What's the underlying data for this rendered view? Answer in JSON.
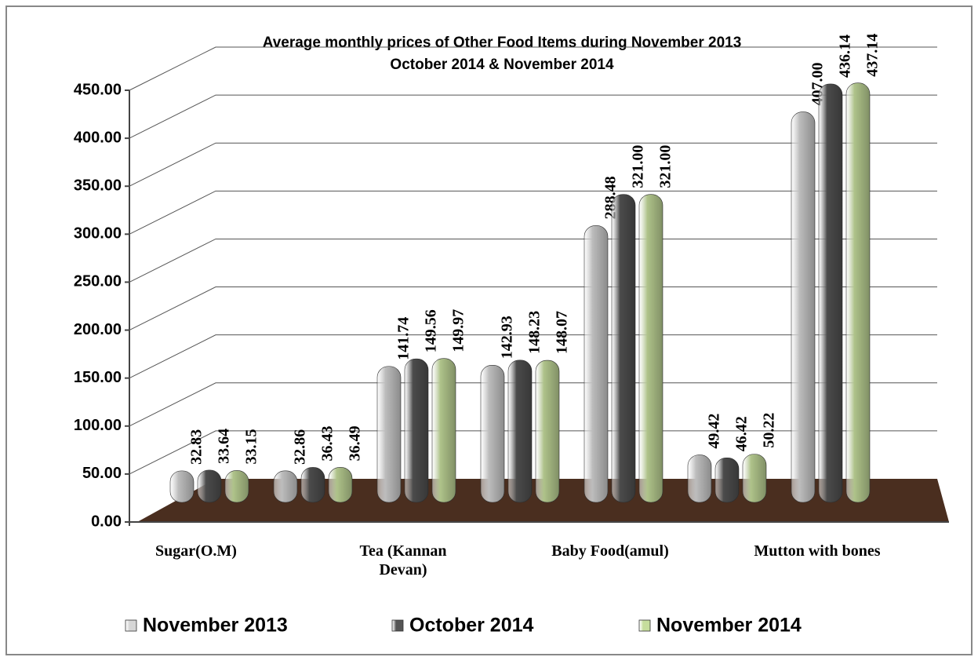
{
  "chart_data": {
    "type": "bar3d",
    "title": [
      "Average monthly prices of Other Food Items during  November  2013",
      "October 2014 & November 2014"
    ],
    "categories": [
      "Sugar(O.M)",
      null,
      "Tea (Kannan Devan)",
      null,
      "Baby Food(amul)",
      null,
      "Mutton with  bones"
    ],
    "series": [
      {
        "name": "November 2013",
        "color": "#d6d6d6",
        "values": [
          32.83,
          32.86,
          141.74,
          142.93,
          288.48,
          49.42,
          407.0
        ],
        "value_labels": [
          "32.83",
          "32.86",
          "141.74",
          "142.93",
          "288.48",
          "49.42",
          "407.00"
        ]
      },
      {
        "name": "October 2014",
        "color": "#555555",
        "values": [
          33.64,
          36.43,
          149.56,
          148.23,
          321.0,
          46.42,
          436.14
        ],
        "value_labels": [
          "33.64",
          "36.43",
          "149.56",
          "148.23",
          "321.00",
          "46.42",
          "436.14"
        ]
      },
      {
        "name": "November 2014",
        "color": "#c6dd9c",
        "values": [
          33.15,
          36.49,
          149.97,
          148.07,
          321.0,
          50.22,
          437.14
        ],
        "value_labels": [
          "33.15",
          "36.49",
          "149.97",
          "148.07",
          "321.00",
          "50.22",
          "437.14"
        ]
      }
    ],
    "ylim": [
      0,
      450
    ],
    "yticks": [
      {
        "value": 0,
        "label": "0.00"
      },
      {
        "value": 50,
        "label": "50.00"
      },
      {
        "value": 100,
        "label": "100.00"
      },
      {
        "value": 150,
        "label": "150.00"
      },
      {
        "value": 200,
        "label": "200.00"
      },
      {
        "value": 250,
        "label": "250.00"
      },
      {
        "value": 300,
        "label": "300.00"
      },
      {
        "value": 350,
        "label": "350.00"
      },
      {
        "value": 400,
        "label": "400.00"
      },
      {
        "value": 450,
        "label": "450.00"
      }
    ],
    "grid": true,
    "legend": "bottom"
  }
}
